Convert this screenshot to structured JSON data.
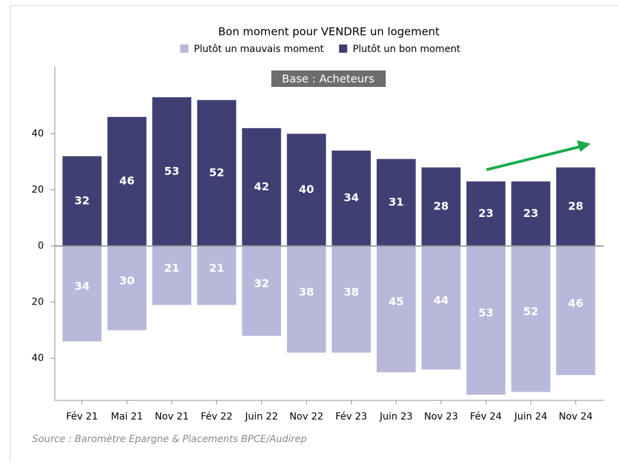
{
  "chart_data": {
    "type": "bar",
    "stacked": "diverging",
    "title": "Bon moment pour VENDRE un logement",
    "annotation": "Base : Acheteurs",
    "source": "Source : Baromètre Epargne & Placements BPCE/Audirep",
    "legend": "top",
    "categories": [
      "Fév 21",
      "Mai 21",
      "Nov 21",
      "Fév 22",
      "Juin 22",
      "Nov 22",
      "Fév 23",
      "Juin 23",
      "Nov 23",
      "Fév 24",
      "Juin 24",
      "Nov 24"
    ],
    "series": [
      {
        "name": "Plutôt un mauvais moment",
        "color": "#b8b8da",
        "values": [
          -34,
          -30,
          -21,
          -21,
          -32,
          -38,
          -38,
          -45,
          -44,
          -53,
          -52,
          -46
        ],
        "value_labels": [
          "34",
          "30",
          "21",
          "21",
          "32",
          "38",
          "38",
          "45",
          "44",
          "53",
          "52",
          "46"
        ]
      },
      {
        "name": "Plutôt un bon moment",
        "color": "#3f3f74",
        "values": [
          32,
          46,
          53,
          52,
          42,
          40,
          34,
          31,
          28,
          23,
          23,
          28
        ]
      }
    ],
    "ylim": [
      -55,
      64
    ],
    "yticks": [
      {
        "value": -40,
        "label": "40"
      },
      {
        "value": -20,
        "label": "20"
      },
      0,
      20,
      40
    ],
    "grid": false
  }
}
